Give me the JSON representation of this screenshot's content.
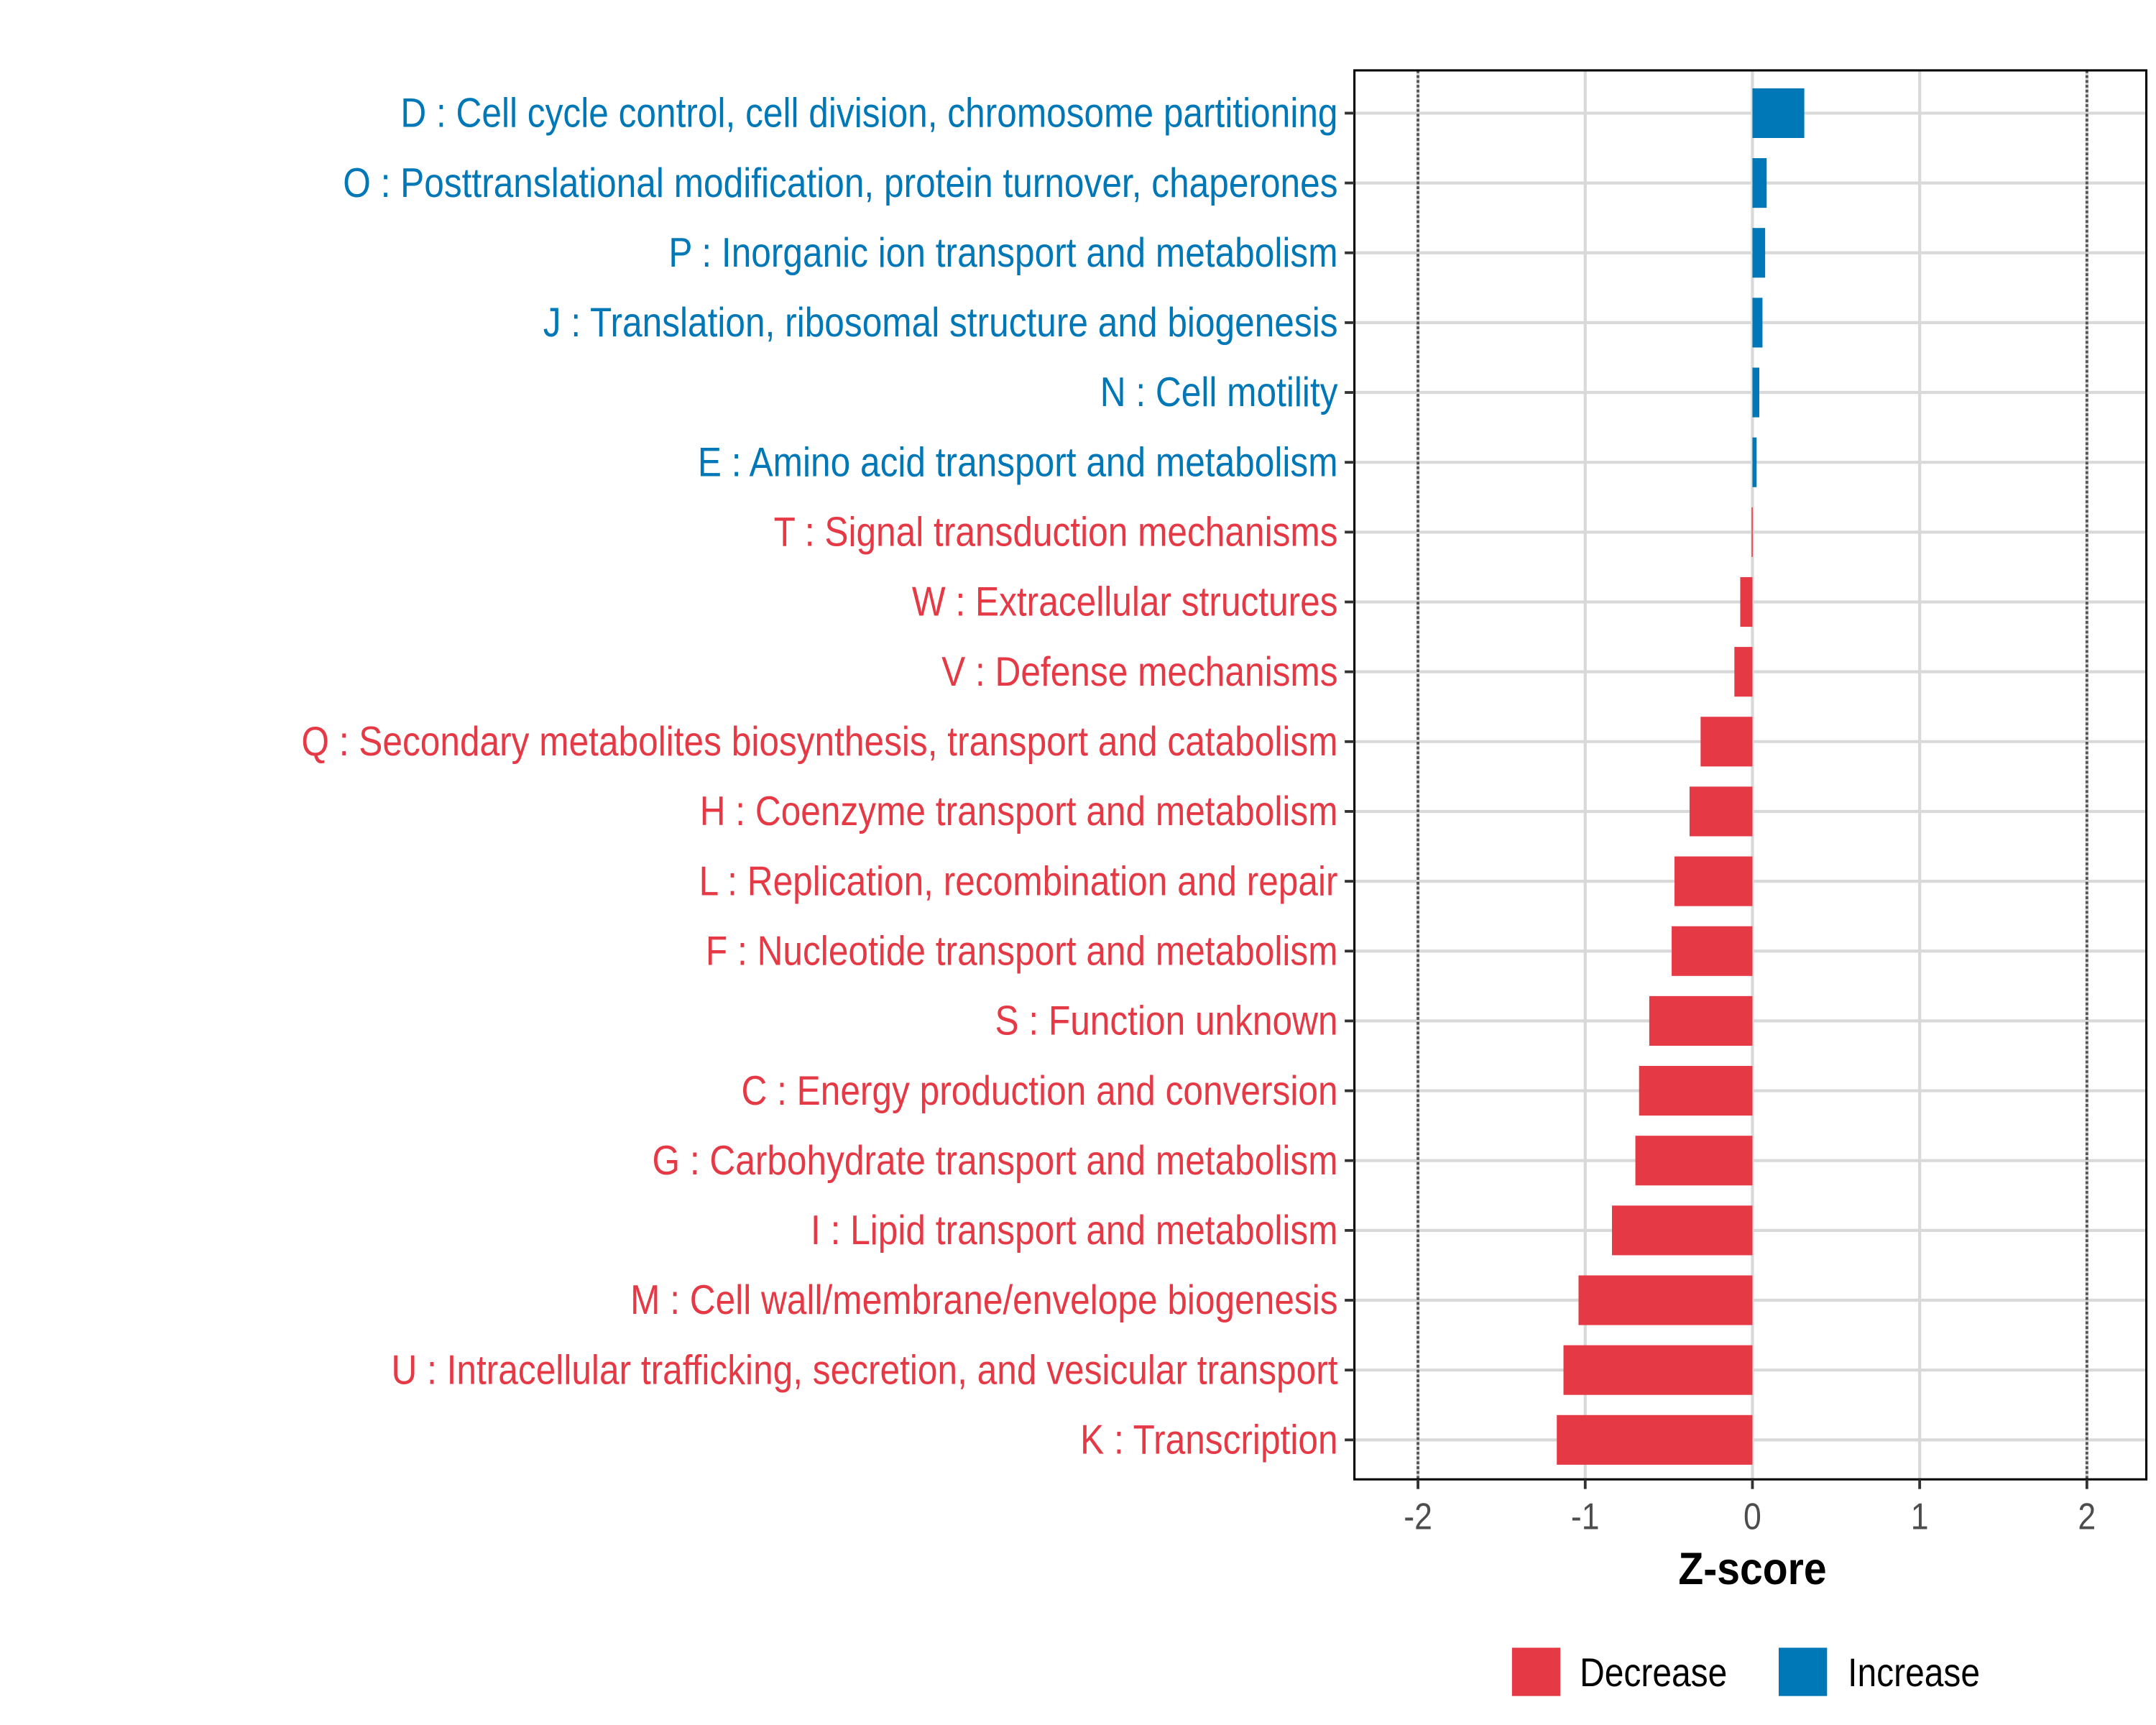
{
  "chart_data": {
    "type": "bar",
    "orientation": "horizontal",
    "title": "",
    "xlabel": "Z-score",
    "ylabel": "",
    "xlim": [
      -2.35,
      2.4
    ],
    "x_ticks": [
      -2,
      -1,
      0,
      1,
      2
    ],
    "x_tick_labels": [
      "-2",
      "-1",
      "0",
      "1",
      "2"
    ],
    "reference_lines": [
      -2,
      2
    ],
    "grid": true,
    "legend_position": "bottom",
    "colors": {
      "Decrease": "#E63946",
      "Increase": "#0077B6"
    },
    "legend": [
      {
        "label": "Decrease",
        "color": "#E63946"
      },
      {
        "label": "Increase",
        "color": "#0077B6"
      }
    ],
    "categories": [
      "D : Cell cycle control, cell division, chromosome partitioning",
      "O : Posttranslational modification, protein turnover, chaperones",
      "P : Inorganic ion transport and metabolism",
      "J : Translation, ribosomal structure and biogenesis",
      "N : Cell motility",
      "E : Amino acid transport and metabolism",
      "T : Signal transduction mechanisms",
      "W : Extracellular structures",
      "V : Defense mechanisms",
      "Q : Secondary metabolites biosynthesis, transport and catabolism",
      "H : Coenzyme transport and metabolism",
      "L : Replication, recombination and repair",
      "F : Nucleotide transport and metabolism",
      "S : Function unknown",
      "C : Energy production and conversion",
      "G : Carbohydrate transport and metabolism",
      "I : Lipid transport and metabolism",
      "M : Cell wall/membrane/envelope biogenesis",
      "U : Intracellular trafficking, secretion, and vesicular transport",
      "K : Transcription"
    ],
    "values": [
      0.31,
      0.085,
      0.076,
      0.06,
      0.041,
      0.025,
      -0.005,
      -0.073,
      -0.108,
      -0.31,
      -0.376,
      -0.466,
      -0.483,
      -0.617,
      -0.678,
      -0.7,
      -0.84,
      -1.04,
      -1.13,
      -1.17
    ],
    "groups": [
      "Increase",
      "Increase",
      "Increase",
      "Increase",
      "Increase",
      "Increase",
      "Decrease",
      "Decrease",
      "Decrease",
      "Decrease",
      "Decrease",
      "Decrease",
      "Decrease",
      "Decrease",
      "Decrease",
      "Decrease",
      "Decrease",
      "Decrease",
      "Decrease",
      "Decrease"
    ]
  }
}
